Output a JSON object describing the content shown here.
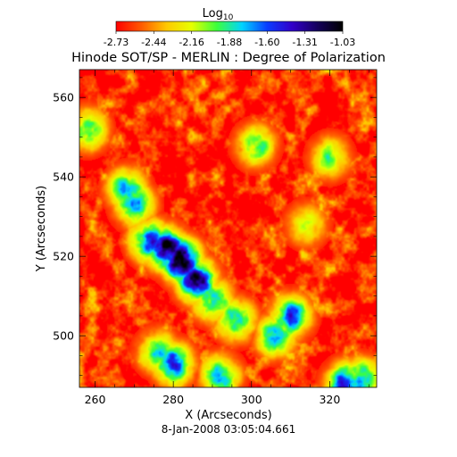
{
  "chart_data": {
    "type": "heatmap",
    "title": "Hinode SOT/SP - MERLIN : Degree of Polarization",
    "xlabel": "X (Arcseconds)",
    "ylabel": "Y (Arcseconds)",
    "footer": "8-Jan-2008 03:05:04.661",
    "xlim": [
      256,
      332
    ],
    "ylim": [
      487,
      567
    ],
    "x_ticks": [
      260,
      280,
      300,
      320
    ],
    "y_ticks": [
      500,
      520,
      540,
      560
    ],
    "grid": false,
    "colorbar": {
      "title": "Log",
      "title_subscript": "10",
      "ticks": [
        "-2.73",
        "-2.44",
        "-2.16",
        "-1.88",
        "-1.60",
        "-1.31",
        "-1.03"
      ],
      "range": [
        -2.73,
        -1.03
      ],
      "position": "top"
    },
    "colormap_colors": [
      "#ff0000",
      "#ff5a00",
      "#ffc800",
      "#e6ff00",
      "#3cff3c",
      "#00d4ff",
      "#0a3cff",
      "#3200c8",
      "#14005a",
      "#000000"
    ],
    "background_level": -2.65,
    "features": [
      {
        "x": 282,
        "y": 519,
        "level": -1.1
      },
      {
        "x": 278,
        "y": 522,
        "level": -1.2
      },
      {
        "x": 286,
        "y": 514,
        "level": -1.25
      },
      {
        "x": 274,
        "y": 524,
        "level": -1.5
      },
      {
        "x": 270,
        "y": 533,
        "level": -1.7
      },
      {
        "x": 268,
        "y": 537,
        "level": -1.8
      },
      {
        "x": 290,
        "y": 509,
        "level": -1.7
      },
      {
        "x": 296,
        "y": 504,
        "level": -1.75
      },
      {
        "x": 310,
        "y": 505,
        "level": -1.6
      },
      {
        "x": 306,
        "y": 500,
        "level": -1.8
      },
      {
        "x": 280,
        "y": 493,
        "level": -1.55
      },
      {
        "x": 276,
        "y": 496,
        "level": -1.85
      },
      {
        "x": 292,
        "y": 490,
        "level": -1.75
      },
      {
        "x": 324,
        "y": 488,
        "level": -1.55
      },
      {
        "x": 328,
        "y": 489,
        "level": -1.7
      },
      {
        "x": 258,
        "y": 552,
        "level": -1.85
      },
      {
        "x": 301,
        "y": 548,
        "level": -1.9
      },
      {
        "x": 320,
        "y": 545,
        "level": -2.0
      },
      {
        "x": 314,
        "y": 528,
        "level": -2.1
      }
    ]
  }
}
